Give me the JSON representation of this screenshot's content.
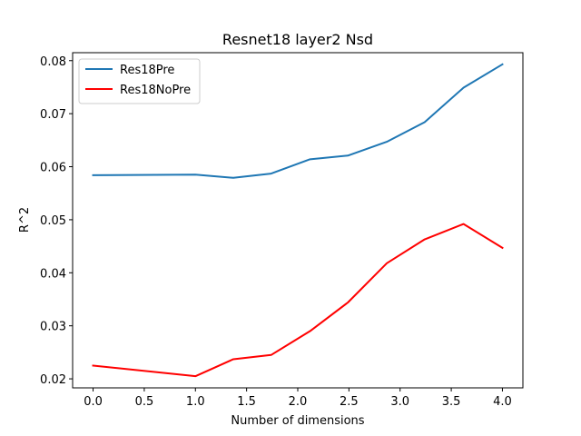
{
  "chart_data": {
    "type": "line",
    "title": "Resnet18 layer2 Nsd",
    "xlabel": "Number of dimensions",
    "ylabel": "R^2",
    "xlim": [
      -0.2,
      4.2
    ],
    "ylim": [
      0.0183,
      0.0815
    ],
    "xticks": [
      0.0,
      0.5,
      1.0,
      1.5,
      2.0,
      2.5,
      3.0,
      3.5,
      4.0
    ],
    "xtick_labels": [
      "0.0",
      "0.5",
      "1.0",
      "1.5",
      "2.0",
      "2.5",
      "3.0",
      "3.5",
      "4.0"
    ],
    "yticks": [
      0.02,
      0.03,
      0.04,
      0.05,
      0.06,
      0.07,
      0.08
    ],
    "ytick_labels": [
      "0.02",
      "0.03",
      "0.04",
      "0.05",
      "0.06",
      "0.07",
      "0.08"
    ],
    "grid": false,
    "legend_position": "top-left",
    "series": [
      {
        "name": "Res18Pre",
        "color": "#1f77b4",
        "x": [
          0.0,
          1.0,
          1.37,
          1.74,
          2.12,
          2.49,
          2.87,
          3.24,
          3.62,
          4.0
        ],
        "values": [
          0.0584,
          0.0585,
          0.0579,
          0.0587,
          0.0614,
          0.0621,
          0.0647,
          0.0684,
          0.0749,
          0.0793
        ]
      },
      {
        "name": "Res18NoPre",
        "color": "#ff0000",
        "x": [
          0.0,
          1.0,
          1.37,
          1.74,
          2.12,
          2.49,
          2.87,
          3.24,
          3.62,
          4.0
        ],
        "values": [
          0.0225,
          0.0205,
          0.0237,
          0.0245,
          0.029,
          0.0344,
          0.0418,
          0.0463,
          0.0492,
          0.0447
        ]
      }
    ]
  }
}
